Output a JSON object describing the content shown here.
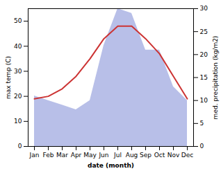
{
  "chart_data": {
    "type": "line",
    "xlabel": "date (month)",
    "ylabel": "max temp (C)",
    "y2label": "med. precipitation (kg/m2)",
    "categories": [
      "Jan",
      "Feb",
      "Mar",
      "Apr",
      "May",
      "Jun",
      "Jul",
      "Aug",
      "Sep",
      "Oct",
      "Nov",
      "Dec"
    ],
    "series": [
      {
        "type": "area",
        "color": "#b8bfe8",
        "axis": "y2",
        "values": [
          11,
          10,
          9,
          8,
          10,
          22,
          30,
          29,
          21,
          21,
          13,
          10
        ]
      },
      {
        "type": "line",
        "color": "#cc3333",
        "values": [
          19,
          20,
          23,
          28,
          35,
          43,
          48,
          48,
          43,
          37,
          28,
          19
        ]
      }
    ],
    "ylim": [
      0,
      55
    ],
    "yticks": [
      0,
      10,
      20,
      30,
      40,
      50
    ],
    "y2lim": [
      0,
      30
    ],
    "y2ticks": [
      0,
      5,
      10,
      15,
      20,
      25,
      30
    ],
    "grid": false
  }
}
